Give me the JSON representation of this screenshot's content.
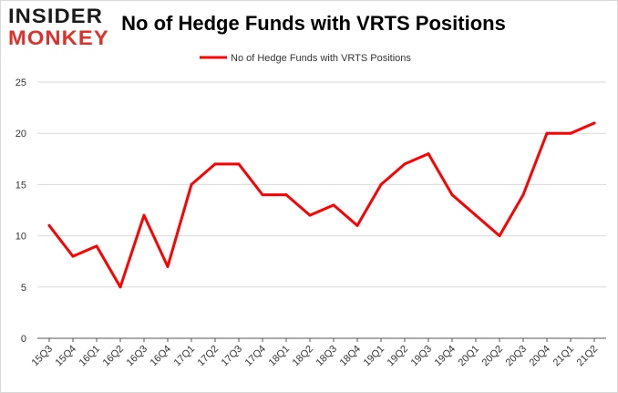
{
  "logo": {
    "top": "INSIDER",
    "bottom": "MONKEY"
  },
  "colors": {
    "line": "#ff0000",
    "grid": "#d9d9d9",
    "axis": "#555555",
    "brand_red": "#e0302b"
  },
  "chart_data": {
    "type": "line",
    "title": "No of Hedge Funds with VRTS Positions",
    "xlabel": "",
    "ylabel": "",
    "categories": [
      "15Q3",
      "15Q4",
      "16Q1",
      "16Q2",
      "16Q3",
      "16Q4",
      "17Q1",
      "17Q2",
      "17Q3",
      "17Q4",
      "18Q1",
      "18Q2",
      "18Q3",
      "18Q4",
      "19Q1",
      "19Q2",
      "19Q3",
      "19Q4",
      "20Q1",
      "20Q2",
      "20Q3",
      "20Q4",
      "21Q1",
      "21Q2"
    ],
    "series": [
      {
        "name": "No of Hedge Funds with VRTS Positions",
        "values": [
          11,
          8,
          9,
          5,
          12,
          7,
          15,
          17,
          17,
          14,
          14,
          12,
          13,
          11,
          15,
          17,
          18,
          14,
          12,
          10,
          14,
          20,
          20,
          21
        ]
      }
    ],
    "ylim": [
      0,
      25
    ],
    "yticks": [
      0,
      5,
      10,
      15,
      20,
      25
    ],
    "grid": true,
    "legend_position": "top-center"
  }
}
